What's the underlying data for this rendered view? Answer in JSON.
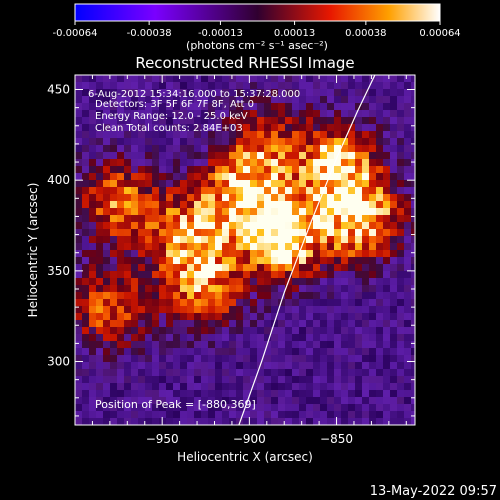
{
  "colorbar": {
    "tick_labels": [
      "-0.00064",
      "-0.00038",
      "-0.00013",
      "0.00013",
      "0.00038",
      "0.00064"
    ],
    "unit_label": "(photons cm⁻² s⁻¹ asec⁻²)",
    "range": [
      -0.00064,
      0.00064
    ]
  },
  "chart_data": {
    "type": "heatmap",
    "title": "Reconstructed RHESSI Image",
    "xlabel": "Heliocentric X (arcsec)",
    "ylabel": "Heliocentric Y (arcsec)",
    "xlim": [
      -1000,
      -805
    ],
    "ylim": [
      265,
      458
    ],
    "x_ticks": [
      -950,
      -900,
      -850
    ],
    "y_ticks": [
      300,
      350,
      400,
      450
    ],
    "annotations": [
      "6-Aug-2012 15:34:16.000 to 15:37:28.000",
      "Detectors: 3F 5F 6F 7F 8F, Att 0",
      "Energy Range: 12.0 - 25.0 keV",
      "Clean     Total counts: 2.84E+03"
    ],
    "peak_label": "Position of Peak = [-880,369]",
    "peak": [
      -880,
      369
    ],
    "limb_curve": [
      [
        -906,
        265
      ],
      [
        -893,
        300
      ],
      [
        -880,
        338
      ],
      [
        -865,
        376
      ],
      [
        -850,
        412
      ],
      [
        -838,
        438
      ],
      [
        -828,
        458
      ]
    ],
    "sources": [
      {
        "x": -880,
        "y": 369,
        "intensity": 1.0
      },
      {
        "x": -835,
        "y": 378,
        "intensity": 0.82
      },
      {
        "x": -850,
        "y": 408,
        "intensity": 0.78
      },
      {
        "x": -905,
        "y": 393,
        "intensity": 0.72
      },
      {
        "x": -935,
        "y": 370,
        "intensity": 0.65
      },
      {
        "x": -975,
        "y": 388,
        "intensity": 0.58
      },
      {
        "x": -980,
        "y": 330,
        "intensity": 0.55
      },
      {
        "x": -925,
        "y": 342,
        "intensity": 0.6
      },
      {
        "x": -890,
        "y": 420,
        "intensity": 0.45
      }
    ]
  },
  "footer": {
    "timestamp": "13-May-2022 09:57"
  }
}
